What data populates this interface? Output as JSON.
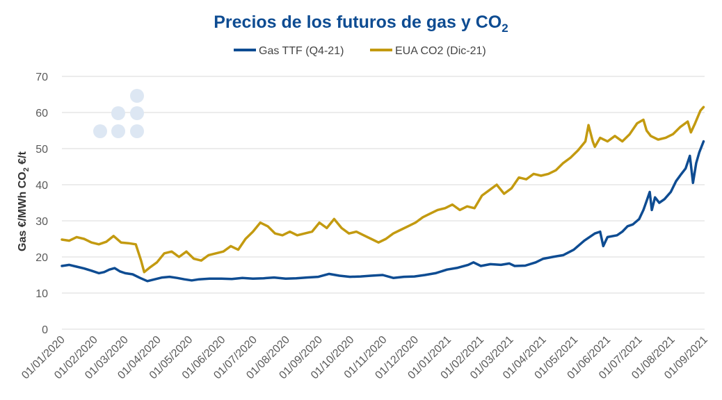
{
  "chart_data": {
    "type": "line",
    "title": "Precios de los futuros de gas y CO",
    "title_subscript": "2",
    "ylabel_gas": "Gas €/MWh",
    "ylabel_co2_prefix": "CO",
    "ylabel_co2_sub": "2",
    "ylabel_co2_suffix": " €/t",
    "ylim": [
      0,
      70
    ],
    "yticks": [
      0,
      10,
      20,
      30,
      40,
      50,
      60,
      70
    ],
    "xlim": [
      "2020-01-01",
      "2021-09-01"
    ],
    "xticks": [
      "01/01/2020",
      "01/02/2020",
      "01/03/2020",
      "01/04/2020",
      "01/05/2020",
      "01/06/2020",
      "01/07/2020",
      "01/08/2020",
      "01/09/2020",
      "01/10/2020",
      "01/11/2020",
      "01/12/2020",
      "01/01/2021",
      "01/02/2021",
      "01/03/2021",
      "01/04/2021",
      "01/05/2021",
      "01/06/2021",
      "01/07/2021",
      "01/08/2021",
      "01/09/2021"
    ],
    "grid": true,
    "legend_position": "top",
    "series": [
      {
        "name": "Gas TTF (Q4-21)",
        "color": "#0e4c92",
        "points": [
          [
            "2020-01-01",
            17.5
          ],
          [
            "2020-01-08",
            17.8
          ],
          [
            "2020-01-15",
            17.3
          ],
          [
            "2020-01-22",
            16.8
          ],
          [
            "2020-01-29",
            16.2
          ],
          [
            "2020-02-05",
            15.5
          ],
          [
            "2020-02-10",
            15.8
          ],
          [
            "2020-02-15",
            16.5
          ],
          [
            "2020-02-20",
            16.9
          ],
          [
            "2020-02-25",
            16.0
          ],
          [
            "2020-03-01",
            15.5
          ],
          [
            "2020-03-08",
            15.2
          ],
          [
            "2020-03-15",
            14.2
          ],
          [
            "2020-03-22",
            13.3
          ],
          [
            "2020-03-29",
            13.8
          ],
          [
            "2020-04-05",
            14.3
          ],
          [
            "2020-04-12",
            14.5
          ],
          [
            "2020-04-19",
            14.2
          ],
          [
            "2020-04-26",
            13.8
          ],
          [
            "2020-05-03",
            13.5
          ],
          [
            "2020-05-10",
            13.8
          ],
          [
            "2020-05-20",
            14.0
          ],
          [
            "2020-05-31",
            14.0
          ],
          [
            "2020-06-10",
            13.9
          ],
          [
            "2020-06-20",
            14.2
          ],
          [
            "2020-06-30",
            14.0
          ],
          [
            "2020-07-10",
            14.1
          ],
          [
            "2020-07-20",
            14.3
          ],
          [
            "2020-07-31",
            14.0
          ],
          [
            "2020-08-10",
            14.1
          ],
          [
            "2020-08-20",
            14.3
          ],
          [
            "2020-08-31",
            14.5
          ],
          [
            "2020-09-10",
            15.3
          ],
          [
            "2020-09-20",
            14.8
          ],
          [
            "2020-09-30",
            14.5
          ],
          [
            "2020-10-10",
            14.6
          ],
          [
            "2020-10-20",
            14.8
          ],
          [
            "2020-10-31",
            15.0
          ],
          [
            "2020-11-10",
            14.2
          ],
          [
            "2020-11-20",
            14.5
          ],
          [
            "2020-11-30",
            14.6
          ],
          [
            "2020-12-10",
            15.0
          ],
          [
            "2020-12-20",
            15.5
          ],
          [
            "2020-12-31",
            16.5
          ],
          [
            "2021-01-10",
            17.0
          ],
          [
            "2021-01-20",
            17.8
          ],
          [
            "2021-01-25",
            18.5
          ],
          [
            "2021-02-01",
            17.5
          ],
          [
            "2021-02-10",
            18.0
          ],
          [
            "2021-02-20",
            17.8
          ],
          [
            "2021-02-28",
            18.2
          ],
          [
            "2021-03-05",
            17.5
          ],
          [
            "2021-03-15",
            17.6
          ],
          [
            "2021-03-25",
            18.5
          ],
          [
            "2021-04-01",
            19.5
          ],
          [
            "2021-04-10",
            20.0
          ],
          [
            "2021-04-20",
            20.5
          ],
          [
            "2021-04-30",
            22.0
          ],
          [
            "2021-05-10",
            24.5
          ],
          [
            "2021-05-20",
            26.5
          ],
          [
            "2021-05-25",
            27.0
          ],
          [
            "2021-05-28",
            23.0
          ],
          [
            "2021-06-01",
            25.5
          ],
          [
            "2021-06-10",
            26.0
          ],
          [
            "2021-06-15",
            27.0
          ],
          [
            "2021-06-20",
            28.5
          ],
          [
            "2021-06-25",
            29.0
          ],
          [
            "2021-07-01",
            30.5
          ],
          [
            "2021-07-05",
            33.0
          ],
          [
            "2021-07-08",
            35.5
          ],
          [
            "2021-07-11",
            38.0
          ],
          [
            "2021-07-13",
            33.0
          ],
          [
            "2021-07-16",
            36.5
          ],
          [
            "2021-07-20",
            35.0
          ],
          [
            "2021-07-25",
            36.0
          ],
          [
            "2021-07-31",
            38.0
          ],
          [
            "2021-08-05",
            41.0
          ],
          [
            "2021-08-10",
            43.0
          ],
          [
            "2021-08-14",
            44.5
          ],
          [
            "2021-08-18",
            48.0
          ],
          [
            "2021-08-21",
            40.5
          ],
          [
            "2021-08-24",
            46.0
          ],
          [
            "2021-08-27",
            49.0
          ],
          [
            "2021-08-31",
            52.0
          ]
        ]
      },
      {
        "name": "EUA CO2 (Dic-21)",
        "color": "#c39a10",
        "points": [
          [
            "2020-01-01",
            24.8
          ],
          [
            "2020-01-08",
            24.5
          ],
          [
            "2020-01-15",
            25.5
          ],
          [
            "2020-01-22",
            25.0
          ],
          [
            "2020-01-29",
            24.0
          ],
          [
            "2020-02-05",
            23.5
          ],
          [
            "2020-02-12",
            24.2
          ],
          [
            "2020-02-19",
            25.8
          ],
          [
            "2020-02-26",
            24.0
          ],
          [
            "2020-03-04",
            23.8
          ],
          [
            "2020-03-11",
            23.5
          ],
          [
            "2020-03-16",
            19.0
          ],
          [
            "2020-03-19",
            15.8
          ],
          [
            "2020-03-24",
            17.0
          ],
          [
            "2020-03-31",
            18.5
          ],
          [
            "2020-04-07",
            21.0
          ],
          [
            "2020-04-14",
            21.5
          ],
          [
            "2020-04-21",
            20.0
          ],
          [
            "2020-04-28",
            21.5
          ],
          [
            "2020-05-05",
            19.5
          ],
          [
            "2020-05-12",
            19.0
          ],
          [
            "2020-05-19",
            20.5
          ],
          [
            "2020-05-26",
            21.0
          ],
          [
            "2020-06-02",
            21.5
          ],
          [
            "2020-06-09",
            23.0
          ],
          [
            "2020-06-16",
            22.0
          ],
          [
            "2020-06-23",
            25.0
          ],
          [
            "2020-06-30",
            27.0
          ],
          [
            "2020-07-07",
            29.5
          ],
          [
            "2020-07-14",
            28.5
          ],
          [
            "2020-07-21",
            26.5
          ],
          [
            "2020-07-28",
            26.0
          ],
          [
            "2020-08-04",
            27.0
          ],
          [
            "2020-08-11",
            26.0
          ],
          [
            "2020-08-18",
            26.5
          ],
          [
            "2020-08-25",
            27.0
          ],
          [
            "2020-09-01",
            29.5
          ],
          [
            "2020-09-08",
            28.0
          ],
          [
            "2020-09-15",
            30.5
          ],
          [
            "2020-09-22",
            28.0
          ],
          [
            "2020-09-29",
            26.5
          ],
          [
            "2020-10-06",
            27.0
          ],
          [
            "2020-10-13",
            26.0
          ],
          [
            "2020-10-20",
            25.0
          ],
          [
            "2020-10-27",
            24.0
          ],
          [
            "2020-11-03",
            25.0
          ],
          [
            "2020-11-10",
            26.5
          ],
          [
            "2020-11-17",
            27.5
          ],
          [
            "2020-11-24",
            28.5
          ],
          [
            "2020-12-01",
            29.5
          ],
          [
            "2020-12-08",
            31.0
          ],
          [
            "2020-12-15",
            32.0
          ],
          [
            "2020-12-22",
            33.0
          ],
          [
            "2020-12-29",
            33.5
          ],
          [
            "2021-01-05",
            34.5
          ],
          [
            "2021-01-12",
            33.0
          ],
          [
            "2021-01-19",
            34.0
          ],
          [
            "2021-01-26",
            33.5
          ],
          [
            "2021-02-02",
            37.0
          ],
          [
            "2021-02-09",
            38.5
          ],
          [
            "2021-02-16",
            40.0
          ],
          [
            "2021-02-23",
            37.5
          ],
          [
            "2021-03-02",
            39.0
          ],
          [
            "2021-03-09",
            42.0
          ],
          [
            "2021-03-16",
            41.5
          ],
          [
            "2021-03-23",
            43.0
          ],
          [
            "2021-03-30",
            42.5
          ],
          [
            "2021-04-06",
            43.0
          ],
          [
            "2021-04-13",
            44.0
          ],
          [
            "2021-04-20",
            46.0
          ],
          [
            "2021-04-27",
            47.5
          ],
          [
            "2021-05-04",
            49.5
          ],
          [
            "2021-05-11",
            52.0
          ],
          [
            "2021-05-14",
            56.5
          ],
          [
            "2021-05-18",
            52.0
          ],
          [
            "2021-05-20",
            50.5
          ],
          [
            "2021-05-25",
            53.0
          ],
          [
            "2021-06-01",
            52.0
          ],
          [
            "2021-06-08",
            53.5
          ],
          [
            "2021-06-15",
            52.0
          ],
          [
            "2021-06-22",
            54.0
          ],
          [
            "2021-06-29",
            57.0
          ],
          [
            "2021-07-05",
            58.0
          ],
          [
            "2021-07-08",
            55.0
          ],
          [
            "2021-07-12",
            53.5
          ],
          [
            "2021-07-19",
            52.5
          ],
          [
            "2021-07-26",
            53.0
          ],
          [
            "2021-08-02",
            54.0
          ],
          [
            "2021-08-09",
            56.0
          ],
          [
            "2021-08-16",
            57.5
          ],
          [
            "2021-08-19",
            54.5
          ],
          [
            "2021-08-23",
            57.0
          ],
          [
            "2021-08-28",
            60.5
          ],
          [
            "2021-08-31",
            61.5
          ]
        ]
      }
    ]
  }
}
